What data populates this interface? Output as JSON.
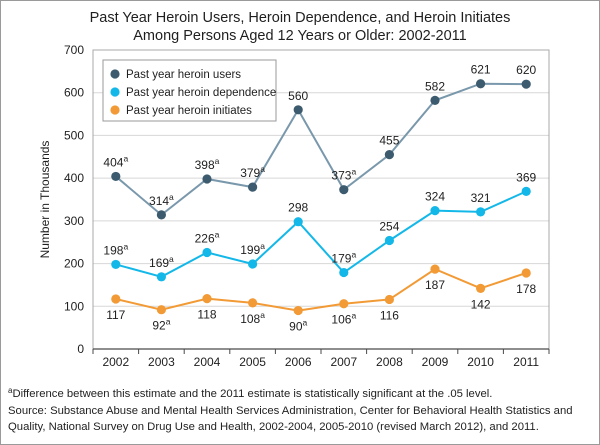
{
  "title_line1": "Past Year Heroin Users, Heroin Dependence, and Heroin Initiates",
  "title_line2": "Among Persons Aged 12 Years or Older: 2002-2011",
  "footnote_marker": "a",
  "footnote_text": "Difference between this estimate and the 2011 estimate is statistically significant at the .05 level.",
  "source_line1": "Source: Substance Abuse and Mental Health Services Administration, Center for Behavioral Health Statistics and",
  "source_line2": "Quality, National Survey on Drug Use and Health, 2002-2004, 2005-2010 (revised March 2012), and 2011.",
  "chart_data": {
    "type": "line",
    "title": "Past Year Heroin Users, Heroin Dependence, and Heroin Initiates Among Persons Aged 12 Years or Older: 2002-2011",
    "xlabel": "",
    "ylabel": "Number in Thousands",
    "ylim": [
      0,
      700
    ],
    "yticks": [
      0,
      100,
      200,
      300,
      400,
      500,
      600,
      700
    ],
    "categories": [
      "2002",
      "2003",
      "2004",
      "2005",
      "2006",
      "2007",
      "2008",
      "2009",
      "2010",
      "2011"
    ],
    "grid": true,
    "legend_position": "top-left",
    "series": [
      {
        "name": "Past year heroin users",
        "color": "#3d5b6e",
        "line_color": "#7a98ac",
        "values": [
          404,
          314,
          398,
          379,
          560,
          373,
          455,
          582,
          621,
          620
        ],
        "labels": [
          "404",
          "314",
          "398",
          "379",
          "560",
          "373",
          "455",
          "582",
          "621",
          "620"
        ],
        "significant": [
          true,
          true,
          true,
          true,
          false,
          true,
          false,
          false,
          false,
          false
        ],
        "label_position": "above"
      },
      {
        "name": "Past year heroin dependence",
        "color": "#14b8e8",
        "line_color": "#14b8e8",
        "values": [
          198,
          169,
          226,
          199,
          298,
          179,
          254,
          324,
          321,
          369
        ],
        "labels": [
          "198",
          "169",
          "226",
          "199",
          "298",
          "179",
          "254",
          "324",
          "321",
          "369"
        ],
        "significant": [
          true,
          true,
          true,
          true,
          false,
          true,
          false,
          false,
          false,
          false
        ],
        "label_position": "above"
      },
      {
        "name": "Past year heroin initiates",
        "color": "#f29a35",
        "line_color": "#f29a35",
        "values": [
          117,
          92,
          118,
          108,
          90,
          106,
          116,
          187,
          142,
          178
        ],
        "labels": [
          "117",
          "92",
          "118",
          "108",
          "90",
          "106",
          "116",
          "187",
          "142",
          "178"
        ],
        "significant": [
          false,
          true,
          false,
          true,
          true,
          true,
          false,
          false,
          false,
          false
        ],
        "label_position": "below"
      }
    ]
  }
}
